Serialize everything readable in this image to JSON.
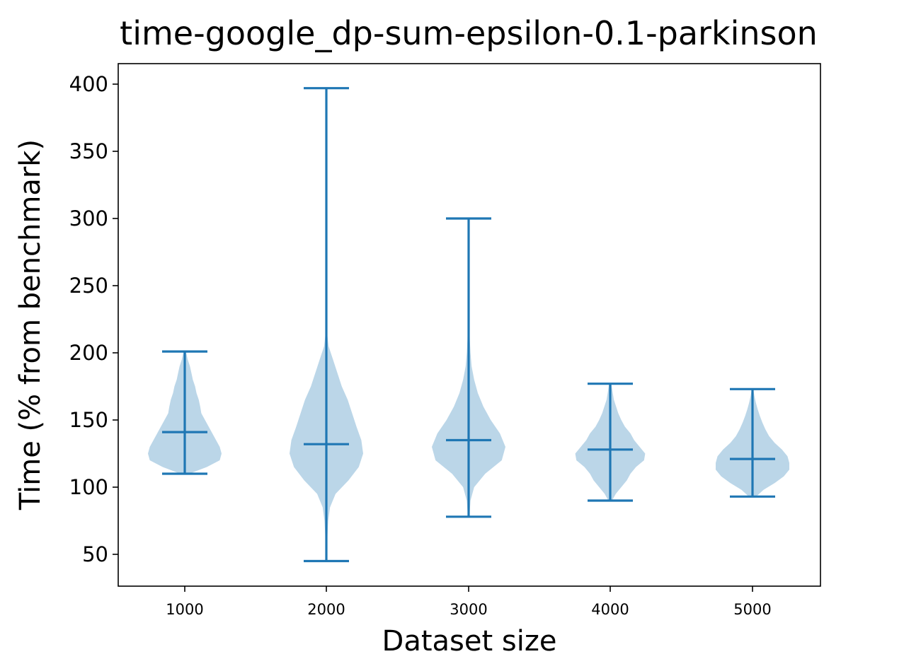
{
  "chart_data": {
    "type": "violin",
    "title": "time-google_dp-sum-epsilon-0.1-parkinson",
    "xlabel": "Dataset size",
    "ylabel": "Time (% from benchmark)",
    "categories": [
      "1000",
      "2000",
      "3000",
      "4000",
      "5000"
    ],
    "yticks": [
      50,
      100,
      150,
      200,
      250,
      300,
      350,
      400
    ],
    "ylim": [
      27,
      415
    ],
    "grid": false,
    "colors": {
      "line": "#1f77b4",
      "fill": "#1f77b4",
      "fill_opacity": 0.3
    },
    "violins": [
      {
        "category": "1000",
        "min": 110,
        "max": 201,
        "mean": 141,
        "profile": [
          [
            110,
            0.12
          ],
          [
            115,
            0.6
          ],
          [
            120,
            0.95
          ],
          [
            125,
            1.0
          ],
          [
            130,
            0.95
          ],
          [
            135,
            0.85
          ],
          [
            140,
            0.75
          ],
          [
            145,
            0.65
          ],
          [
            150,
            0.55
          ],
          [
            155,
            0.45
          ],
          [
            160,
            0.42
          ],
          [
            165,
            0.38
          ],
          [
            170,
            0.32
          ],
          [
            175,
            0.28
          ],
          [
            180,
            0.22
          ],
          [
            185,
            0.18
          ],
          [
            190,
            0.14
          ],
          [
            195,
            0.08
          ],
          [
            201,
            0.03
          ]
        ]
      },
      {
        "category": "2000",
        "min": 45,
        "max": 397,
        "mean": 132,
        "profile": [
          [
            45,
            0.01
          ],
          [
            55,
            0.02
          ],
          [
            65,
            0.03
          ],
          [
            75,
            0.05
          ],
          [
            85,
            0.1
          ],
          [
            95,
            0.25
          ],
          [
            105,
            0.6
          ],
          [
            115,
            0.88
          ],
          [
            125,
            1.0
          ],
          [
            135,
            0.95
          ],
          [
            145,
            0.82
          ],
          [
            155,
            0.7
          ],
          [
            165,
            0.58
          ],
          [
            175,
            0.42
          ],
          [
            185,
            0.3
          ],
          [
            195,
            0.18
          ],
          [
            205,
            0.06
          ],
          [
            215,
            0.02
          ],
          [
            240,
            0.01
          ],
          [
            300,
            0.005
          ],
          [
            397,
            0.003
          ]
        ]
      },
      {
        "category": "3000",
        "min": 78,
        "max": 300,
        "mean": 135,
        "profile": [
          [
            78,
            0.02
          ],
          [
            90,
            0.05
          ],
          [
            100,
            0.15
          ],
          [
            110,
            0.45
          ],
          [
            120,
            0.9
          ],
          [
            130,
            1.0
          ],
          [
            140,
            0.85
          ],
          [
            150,
            0.6
          ],
          [
            160,
            0.4
          ],
          [
            170,
            0.25
          ],
          [
            180,
            0.15
          ],
          [
            190,
            0.08
          ],
          [
            200,
            0.05
          ],
          [
            210,
            0.03
          ],
          [
            230,
            0.015
          ],
          [
            260,
            0.008
          ],
          [
            300,
            0.004
          ]
        ]
      },
      {
        "category": "4000",
        "min": 90,
        "max": 177,
        "mean": 128,
        "profile": [
          [
            90,
            0.05
          ],
          [
            95,
            0.15
          ],
          [
            100,
            0.3
          ],
          [
            105,
            0.45
          ],
          [
            110,
            0.55
          ],
          [
            115,
            0.7
          ],
          [
            120,
            0.92
          ],
          [
            125,
            0.95
          ],
          [
            130,
            0.8
          ],
          [
            135,
            0.65
          ],
          [
            140,
            0.55
          ],
          [
            145,
            0.4
          ],
          [
            150,
            0.3
          ],
          [
            155,
            0.22
          ],
          [
            160,
            0.16
          ],
          [
            165,
            0.1
          ],
          [
            170,
            0.07
          ],
          [
            177,
            0.03
          ]
        ]
      },
      {
        "category": "5000",
        "min": 93,
        "max": 173,
        "mean": 121,
        "profile": [
          [
            93,
            0.1
          ],
          [
            98,
            0.3
          ],
          [
            103,
            0.6
          ],
          [
            108,
            0.85
          ],
          [
            113,
            1.0
          ],
          [
            118,
            1.0
          ],
          [
            123,
            0.95
          ],
          [
            128,
            0.8
          ],
          [
            133,
            0.6
          ],
          [
            138,
            0.45
          ],
          [
            143,
            0.35
          ],
          [
            148,
            0.27
          ],
          [
            153,
            0.2
          ],
          [
            158,
            0.14
          ],
          [
            163,
            0.09
          ],
          [
            168,
            0.05
          ],
          [
            173,
            0.02
          ]
        ]
      }
    ]
  }
}
